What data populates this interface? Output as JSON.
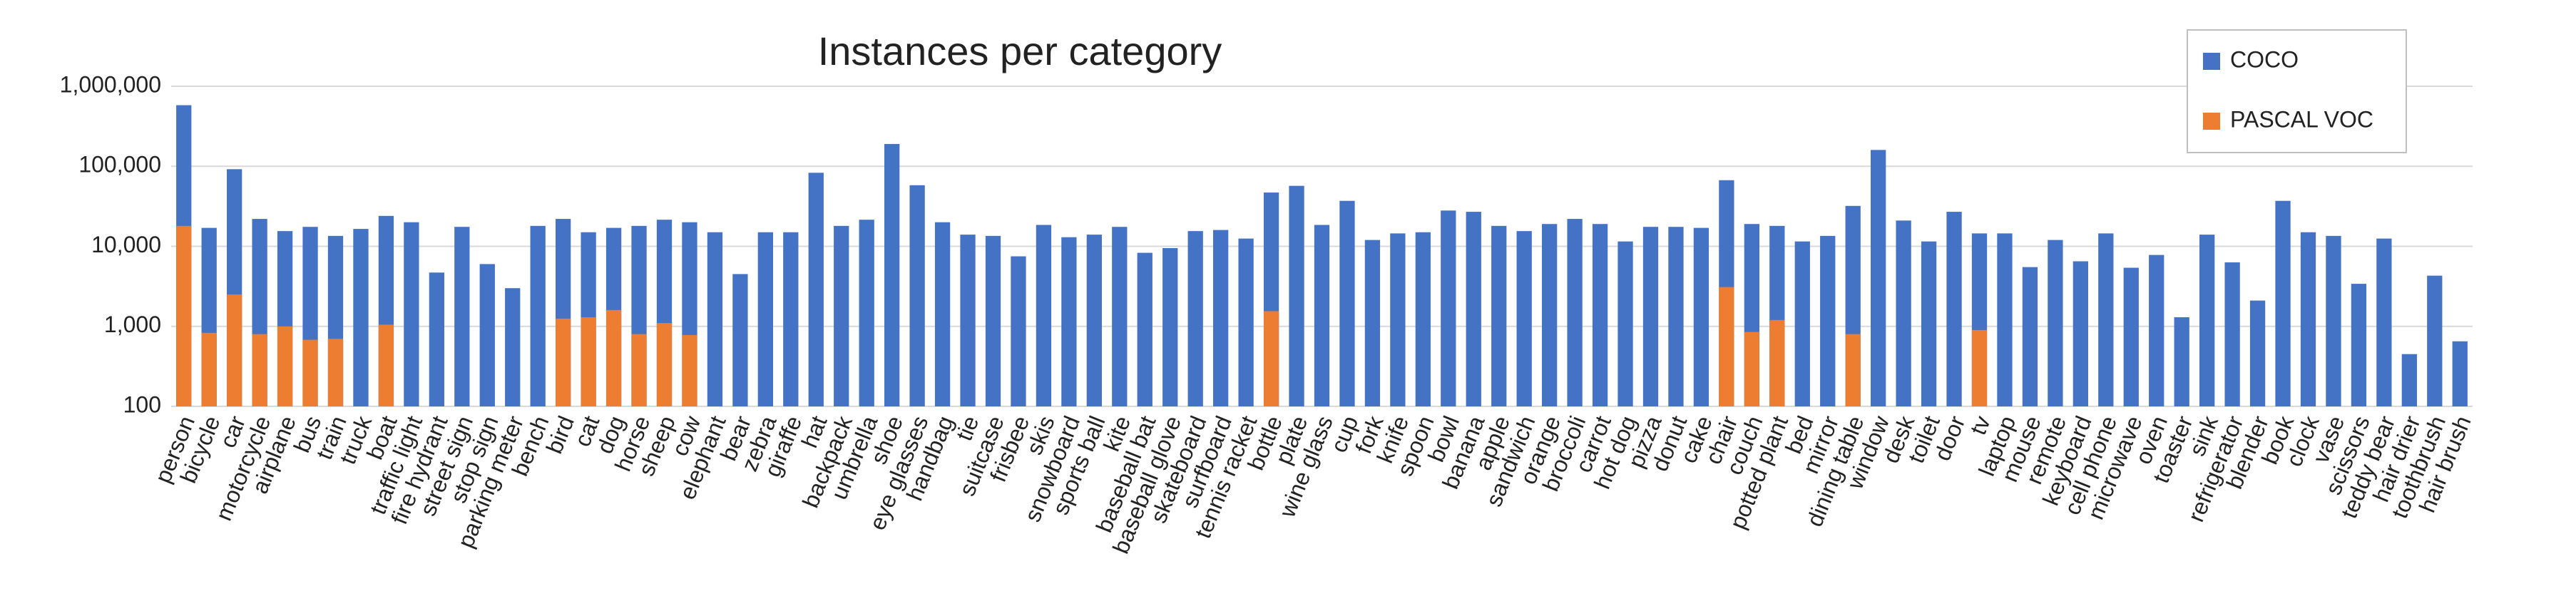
{
  "chart_data": {
    "type": "bar",
    "title": "Instances per category",
    "categories": [
      "person",
      "bicycle",
      "car",
      "motorcycle",
      "airplane",
      "bus",
      "train",
      "truck",
      "boat",
      "traffic light",
      "fire hydrant",
      "street sign",
      "stop sign",
      "parking meter",
      "bench",
      "bird",
      "cat",
      "dog",
      "horse",
      "sheep",
      "cow",
      "elephant",
      "bear",
      "zebra",
      "giraffe",
      "hat",
      "backpack",
      "umbrella",
      "shoe",
      "eye glasses",
      "handbag",
      "tie",
      "suitcase",
      "frisbee",
      "skis",
      "snowboard",
      "sports ball",
      "kite",
      "baseball bat",
      "baseball glove",
      "skateboard",
      "surfboard",
      "tennis racket",
      "bottle",
      "plate",
      "wine glass",
      "cup",
      "fork",
      "knife",
      "spoon",
      "bowl",
      "banana",
      "apple",
      "sandwich",
      "orange",
      "broccoli",
      "carrot",
      "hot dog",
      "pizza",
      "donut",
      "cake",
      "chair",
      "couch",
      "potted plant",
      "bed",
      "mirror",
      "dining table",
      "window",
      "desk",
      "toilet",
      "door",
      "tv",
      "laptop",
      "mouse",
      "remote",
      "keyboard",
      "cell phone",
      "microwave",
      "oven",
      "toaster",
      "sink",
      "refrigerator",
      "blender",
      "book",
      "clock",
      "vase",
      "scissors",
      "teddy bear",
      "hair drier",
      "toothbrush",
      "hair brush"
    ],
    "series": [
      {
        "name": "COCO",
        "color": "#4472c4",
        "values": [
          580000,
          17000,
          92000,
          22000,
          15500,
          17500,
          13500,
          16500,
          24000,
          20000,
          4700,
          17500,
          6000,
          3000,
          18000,
          22000,
          15000,
          17000,
          18000,
          21500,
          20000,
          15000,
          4500,
          15000,
          15000,
          83000,
          18000,
          21500,
          190000,
          58000,
          20000,
          14000,
          13500,
          7500,
          18500,
          13000,
          14000,
          17500,
          8300,
          9500,
          15500,
          16000,
          12500,
          47000,
          57000,
          18500,
          37000,
          12000,
          14500,
          15000,
          28000,
          27000,
          18000,
          15500,
          19000,
          22000,
          19000,
          11500,
          17500,
          17500,
          17000,
          67000,
          19000,
          18000,
          11500,
          13500,
          32000,
          160000,
          21000,
          11500,
          27000,
          14500,
          14500,
          5500,
          12000,
          6500,
          14500,
          5400,
          7800,
          1300,
          14000,
          6300,
          2100,
          37000,
          15000,
          13500,
          3400,
          12500,
          450,
          4300,
          650
        ]
      },
      {
        "name": "PASCAL VOC",
        "color": "#ed7d31",
        "values": [
          18000,
          830,
          2500,
          800,
          1000,
          680,
          700,
          null,
          1050,
          null,
          null,
          null,
          null,
          null,
          null,
          1250,
          1300,
          1600,
          800,
          1100,
          780,
          null,
          null,
          null,
          null,
          null,
          null,
          null,
          null,
          null,
          null,
          null,
          null,
          null,
          null,
          null,
          null,
          null,
          null,
          null,
          null,
          null,
          null,
          1550,
          null,
          null,
          null,
          null,
          null,
          null,
          null,
          null,
          null,
          null,
          null,
          null,
          null,
          null,
          null,
          null,
          null,
          3100,
          850,
          1200,
          null,
          null,
          800,
          null,
          null,
          null,
          null,
          900,
          null,
          null,
          null,
          null,
          null,
          null,
          null,
          null,
          null,
          null,
          null,
          null,
          null,
          null,
          null,
          null,
          null,
          null,
          null
        ]
      }
    ],
    "log_scale": true,
    "grid": true,
    "legend": "top-right",
    "ylim": [
      100,
      1000000
    ],
    "yticks": [
      100,
      {
        "value": 1000,
        "label": "1,000"
      },
      {
        "value": 10000,
        "label": "10,000"
      },
      {
        "value": 100000,
        "label": "100,000"
      },
      {
        "value": 1000000,
        "label": "1,000,000"
      }
    ]
  }
}
